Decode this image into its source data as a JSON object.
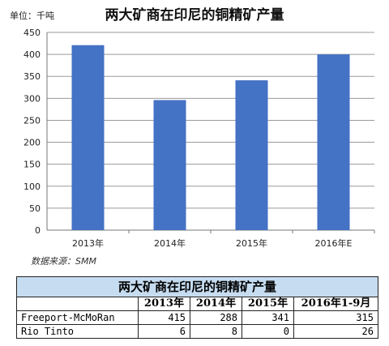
{
  "chart_data": {
    "type": "bar",
    "title": "两大矿商在印尼的铜精矿产量",
    "unit": "单位：千吨",
    "categories": [
      "2013年",
      "2014年",
      "2015年",
      "2016年E"
    ],
    "values": [
      421,
      296,
      341,
      400
    ],
    "ylim": [
      0,
      450
    ],
    "yticks": [
      0,
      50,
      100,
      150,
      200,
      250,
      300,
      350,
      400,
      450
    ],
    "grid": true,
    "bar_color": "#4472c4",
    "source": "数据来源：SMM"
  },
  "table": {
    "title": "两大矿商在印尼的铜精矿产量",
    "headers": [
      "",
      "2013年",
      "2014年",
      "2015年",
      "2016年1-9月"
    ],
    "rows": [
      {
        "name": "Freeport-McMoRan",
        "values": [
          "415",
          "288",
          "341",
          "315"
        ]
      },
      {
        "name": "Rio Tinto",
        "values": [
          "6",
          "8",
          "0",
          "26"
        ]
      }
    ]
  }
}
